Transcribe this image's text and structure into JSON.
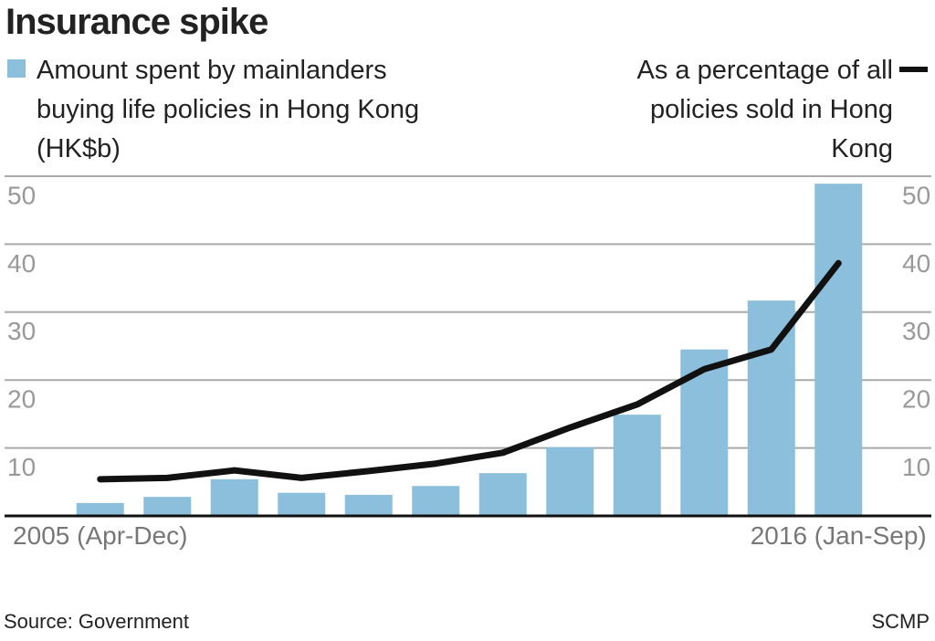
{
  "chart_data": {
    "type": "bar-line",
    "title": "Insurance spike",
    "categories": [
      "2005\n(Apr-Dec)",
      null,
      null,
      null,
      null,
      null,
      null,
      null,
      null,
      null,
      null,
      "2016\n(Jan-Sep)"
    ],
    "series": [
      {
        "name": "Amount spent by mainlanders buying life policies in Hong Kong (HK$b)",
        "type": "bar",
        "color": "#8bbfdb",
        "axis": "y",
        "values": [
          1.9,
          2.8,
          5.4,
          3.4,
          3.1,
          4.4,
          6.3,
          10.1,
          14.9,
          24.5,
          31.7,
          48.9
        ]
      },
      {
        "name": "As a percentage of all policies sold in Hong Kong",
        "type": "line",
        "color": "#111111",
        "axis": "y2",
        "values": [
          5.4,
          5.6,
          6.7,
          5.6,
          6.6,
          7.7,
          9.3,
          13.0,
          16.4,
          21.6,
          24.5,
          37.2
        ]
      }
    ],
    "ylim": [
      0,
      50
    ],
    "yticks": [
      10,
      20,
      30,
      40,
      50
    ],
    "y2lim": [
      0,
      50
    ],
    "y2ticks": [
      10,
      20,
      30,
      40,
      50
    ],
    "grid": true,
    "source": "Source: Government",
    "credit": "SCMP"
  }
}
